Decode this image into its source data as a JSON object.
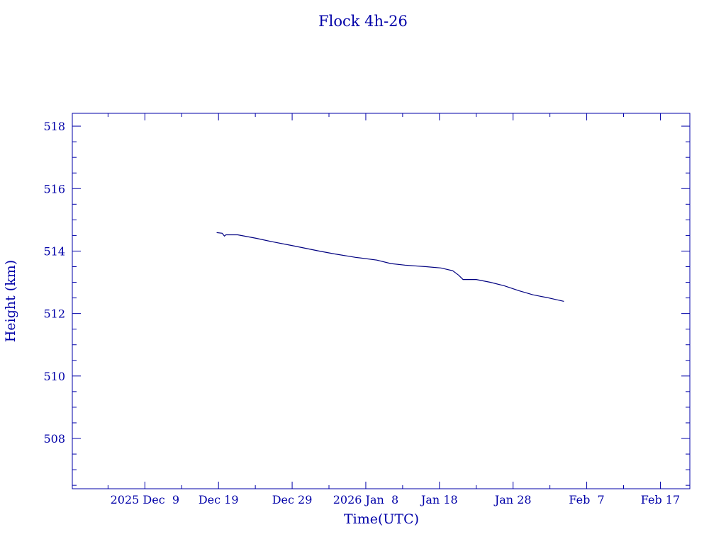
{
  "chart_data": {
    "type": "line",
    "title": "Flock 4h-26",
    "xlabel": "Time(UTC)",
    "ylabel": "Height (km)",
    "x_units": "days since 2025-12-09 00:00 UTC",
    "xlim": [
      -9.85,
      74.0
    ],
    "ylim": [
      506.39,
      518.41
    ],
    "x_ticks": [
      {
        "value": 0,
        "label": "2025 Dec  9"
      },
      {
        "value": 10,
        "label": "Dec 19"
      },
      {
        "value": 20,
        "label": "Dec 29"
      },
      {
        "value": 30,
        "label": "2026 Jan  8"
      },
      {
        "value": 40,
        "label": "Jan 18"
      },
      {
        "value": 50,
        "label": "Jan 28"
      },
      {
        "value": 60,
        "label": "Feb  7"
      },
      {
        "value": 70,
        "label": "Feb 17"
      }
    ],
    "x_minor_step": 5,
    "y_ticks": [
      508,
      510,
      512,
      514,
      516,
      518
    ],
    "y_minor_step": 0.5,
    "grid": false,
    "series": [
      {
        "name": "Height",
        "color": "#000080",
        "x": [
          9.75,
          10.5,
          10.8,
          11.0,
          12.6,
          15.1,
          17.5,
          19.9,
          21.8,
          23.7,
          25.7,
          28.6,
          31.5,
          33.4,
          35.3,
          38.2,
          40.2,
          41.8,
          42.6,
          43.2,
          43.5,
          45.0,
          46.9,
          48.8,
          50.8,
          52.7,
          54.6,
          56.9
        ],
        "y": [
          514.59,
          514.57,
          514.48,
          514.52,
          514.52,
          514.41,
          514.29,
          514.18,
          514.09,
          514.0,
          513.91,
          513.8,
          513.71,
          513.6,
          513.55,
          513.5,
          513.46,
          513.37,
          513.23,
          513.09,
          513.09,
          513.09,
          513.0,
          512.89,
          512.73,
          512.6,
          512.51,
          512.39
        ]
      }
    ]
  }
}
